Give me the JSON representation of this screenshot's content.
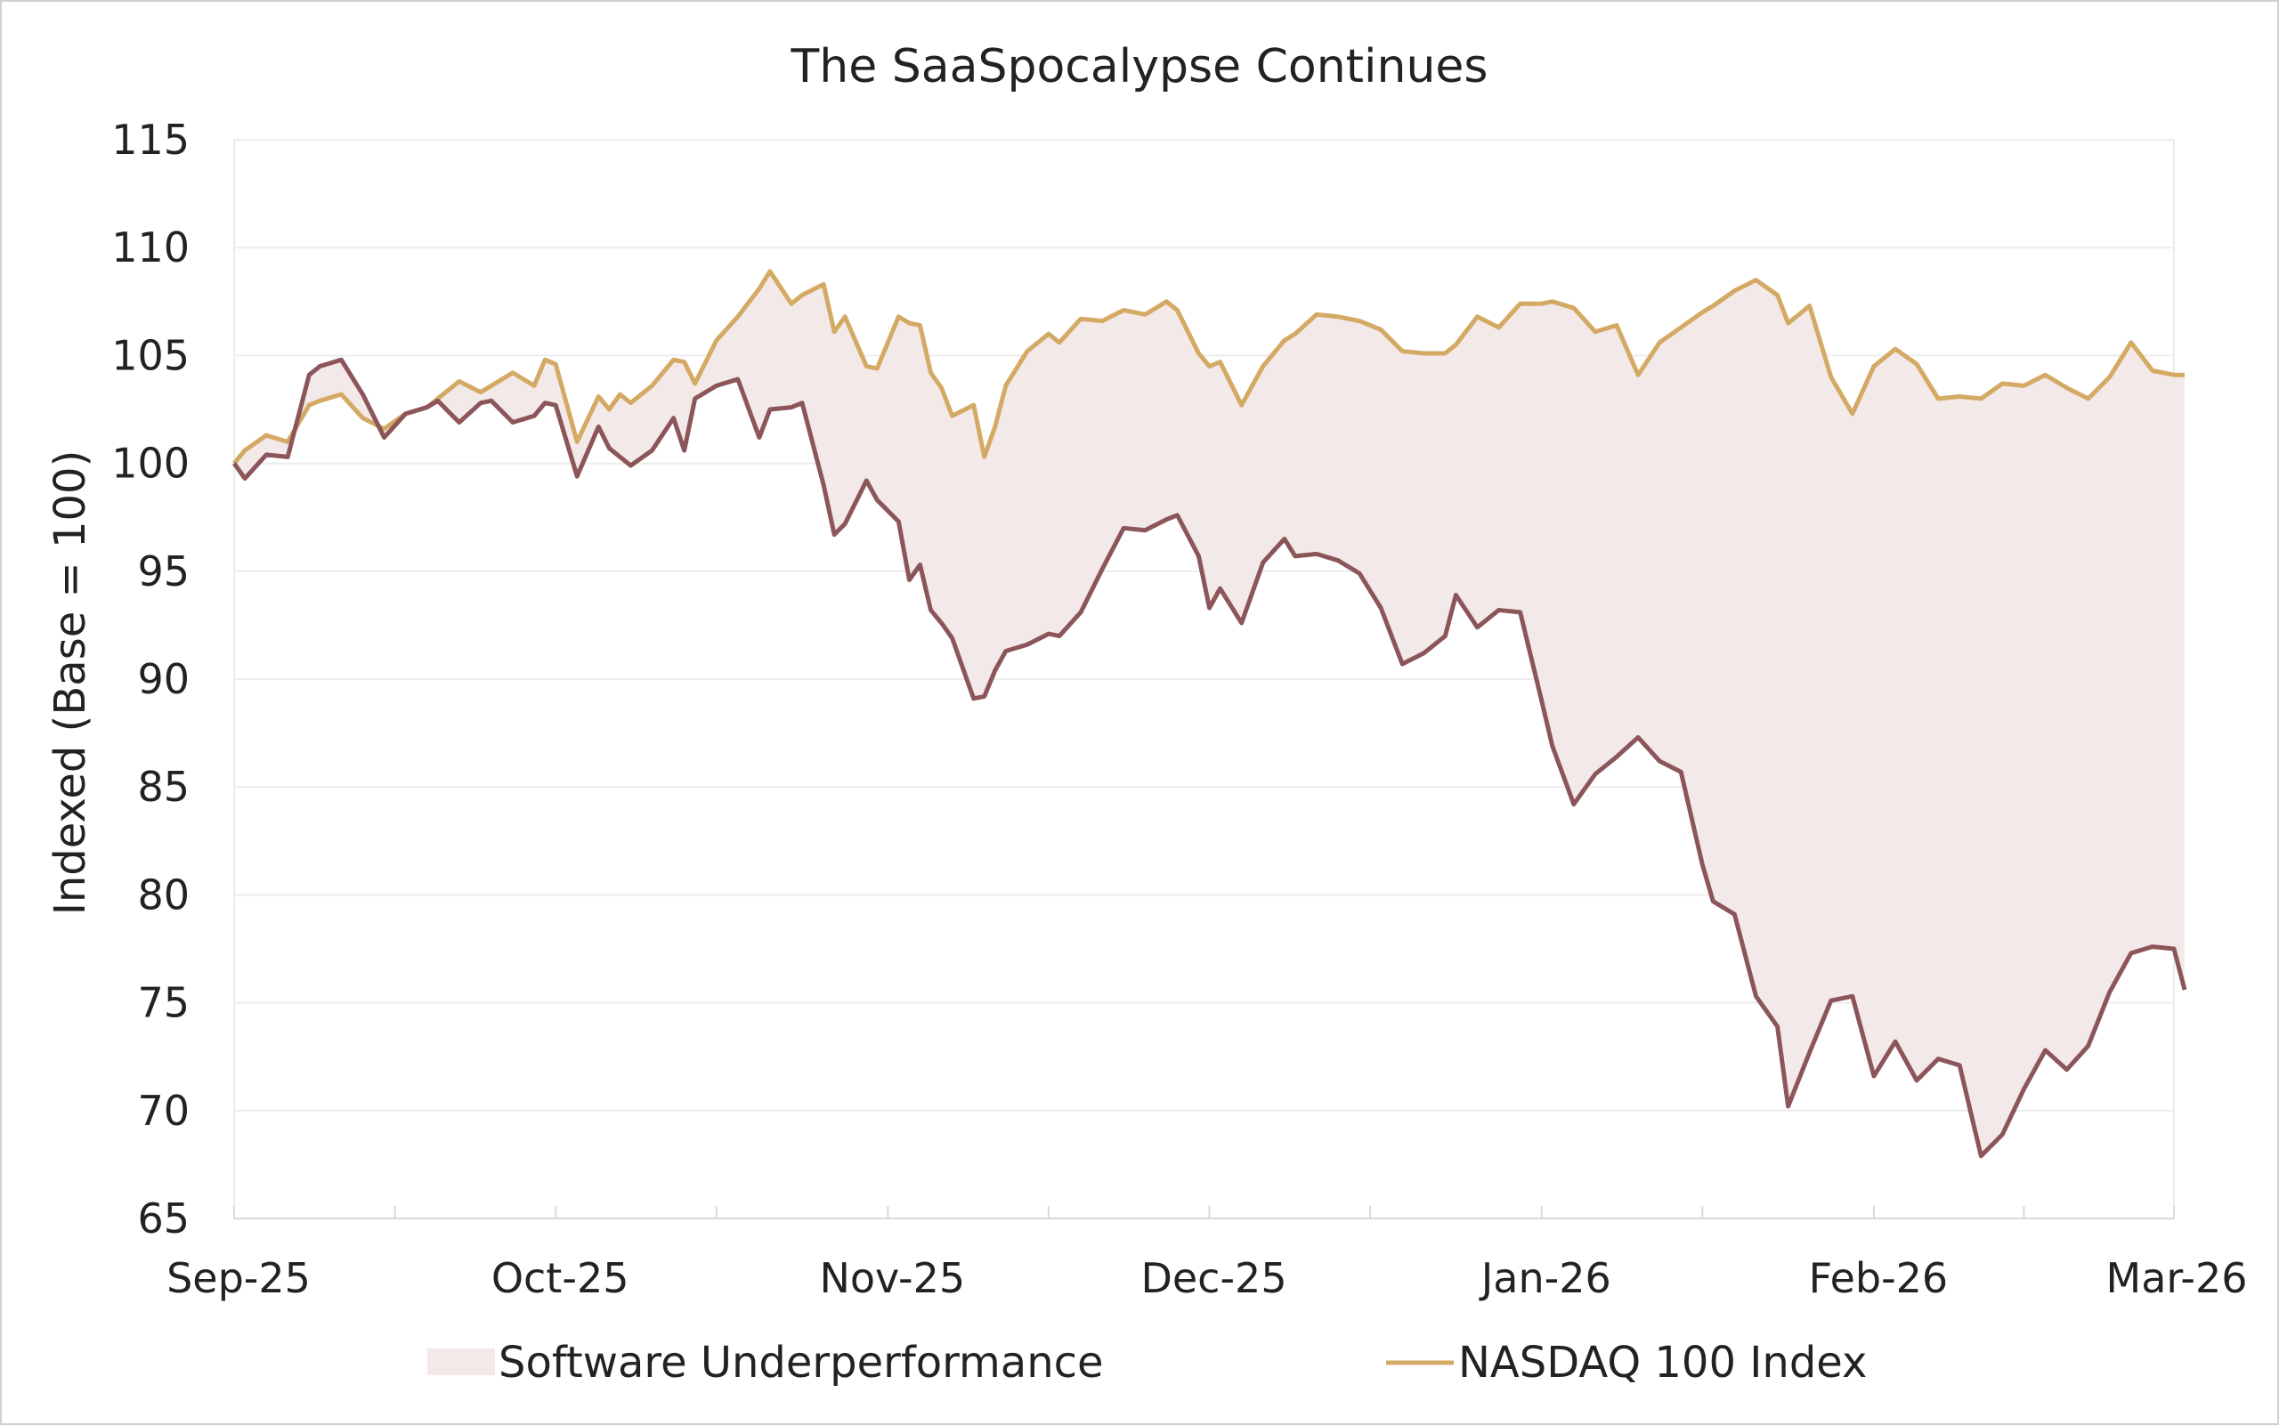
{
  "chart_data": {
    "type": "line",
    "title": "The SaaSpocalypse Continues",
    "xlabel": "",
    "ylabel": "Indexed (Base = 100)",
    "ylim": [
      65,
      115
    ],
    "yticks": [
      65,
      70,
      75,
      80,
      85,
      90,
      95,
      100,
      105,
      110,
      115
    ],
    "xticks": [
      "Sep-25",
      "Oct-25",
      "Nov-25",
      "Dec-25",
      "Jan-26",
      "Feb-26",
      "Mar-26"
    ],
    "grid": "horizontal",
    "legend_position": "bottom",
    "colors": {
      "software": "#8c5559",
      "nasdaq": "#d4a964",
      "fill": "#f3e9e8",
      "grid": "#ececec"
    },
    "fill_between": {
      "name": "Software Underperformance"
    },
    "x": [
      "2025-09-01",
      "2025-09-02",
      "2025-09-04",
      "2025-09-06",
      "2025-09-08",
      "2025-09-09",
      "2025-09-11",
      "2025-09-13",
      "2025-09-15",
      "2025-09-17",
      "2025-09-19",
      "2025-09-20",
      "2025-09-22",
      "2025-09-24",
      "2025-09-25",
      "2025-09-27",
      "2025-09-29",
      "2025-09-30",
      "2025-10-01",
      "2025-10-03",
      "2025-10-05",
      "2025-10-06",
      "2025-10-07",
      "2025-10-08",
      "2025-10-10",
      "2025-10-12",
      "2025-10-13",
      "2025-10-14",
      "2025-10-16",
      "2025-10-18",
      "2025-10-20",
      "2025-10-21",
      "2025-10-23",
      "2025-10-24",
      "2025-10-26",
      "2025-10-27",
      "2025-10-28",
      "2025-10-30",
      "2025-10-31",
      "2025-11-02",
      "2025-11-03",
      "2025-11-04",
      "2025-11-05",
      "2025-11-06",
      "2025-11-07",
      "2025-11-09",
      "2025-11-10",
      "2025-11-11",
      "2025-11-12",
      "2025-11-14",
      "2025-11-16",
      "2025-11-17",
      "2025-11-19",
      "2025-11-21",
      "2025-11-23",
      "2025-11-25",
      "2025-11-27",
      "2025-11-28",
      "2025-11-30",
      "2025-12-01",
      "2025-12-02",
      "2025-12-04",
      "2025-12-06",
      "2025-12-08",
      "2025-12-09",
      "2025-12-11",
      "2025-12-13",
      "2025-12-15",
      "2025-12-17",
      "2025-12-19",
      "2025-12-21",
      "2025-12-23",
      "2025-12-24",
      "2025-12-26",
      "2025-12-28",
      "2025-12-30",
      "2026-01-01",
      "2026-01-02",
      "2026-01-04",
      "2026-01-06",
      "2026-01-08",
      "2026-01-10",
      "2026-01-12",
      "2026-01-14",
      "2026-01-16",
      "2026-01-17",
      "2026-01-19",
      "2026-01-21",
      "2026-01-23",
      "2026-01-24",
      "2026-01-26",
      "2026-01-28",
      "2026-01-30",
      "2026-02-01",
      "2026-02-03",
      "2026-02-05",
      "2026-02-07",
      "2026-02-09",
      "2026-02-11",
      "2026-02-13",
      "2026-02-15",
      "2026-02-17",
      "2026-02-19",
      "2026-02-21",
      "2026-02-23",
      "2026-02-25",
      "2026-02-27",
      "2026-03-01",
      "2026-03-02"
    ],
    "series": [
      {
        "name": "NASDAQ 100 Index",
        "values": [
          100.0,
          100.6,
          101.3,
          101.0,
          102.7,
          102.9,
          103.2,
          102.1,
          101.6,
          102.3,
          102.6,
          103.0,
          103.8,
          103.3,
          103.6,
          104.2,
          103.6,
          104.8,
          104.6,
          101.0,
          103.1,
          102.5,
          103.2,
          102.8,
          103.6,
          104.8,
          104.7,
          103.7,
          105.7,
          106.8,
          108.1,
          108.9,
          107.4,
          107.8,
          108.3,
          106.1,
          106.8,
          104.5,
          104.4,
          106.8,
          106.5,
          106.4,
          104.2,
          103.5,
          102.2,
          102.7,
          100.3,
          101.7,
          103.6,
          105.2,
          106.0,
          105.6,
          106.7,
          106.6,
          107.1,
          106.9,
          107.5,
          107.1,
          105.1,
          104.5,
          104.7,
          102.7,
          104.5,
          105.7,
          106.0,
          106.9,
          106.8,
          106.6,
          106.2,
          105.2,
          105.1,
          105.1,
          105.5,
          106.8,
          106.3,
          107.4,
          107.4,
          107.5,
          107.2,
          106.1,
          106.4,
          104.1,
          105.6,
          106.3,
          107.0,
          107.3,
          108.0,
          108.5,
          107.8,
          106.5,
          107.3,
          104.0,
          102.3,
          104.5,
          105.3,
          104.6,
          103.0,
          103.1,
          103.0,
          103.7,
          103.6,
          104.1,
          103.5,
          103.0,
          104.0,
          105.6,
          104.3,
          104.1,
          104.1
        ]
      },
      {
        "name": "Software",
        "values": [
          100.0,
          99.3,
          100.4,
          100.3,
          104.1,
          104.5,
          104.8,
          103.2,
          101.2,
          102.3,
          102.6,
          102.9,
          101.9,
          102.8,
          102.9,
          101.9,
          102.2,
          102.8,
          102.7,
          99.4,
          101.7,
          100.7,
          100.3,
          99.9,
          100.6,
          102.1,
          100.6,
          103.0,
          103.6,
          103.9,
          101.2,
          102.5,
          102.6,
          102.8,
          99.0,
          96.7,
          97.2,
          99.2,
          98.3,
          97.3,
          94.6,
          95.3,
          93.2,
          92.6,
          91.9,
          89.1,
          89.2,
          90.4,
          91.3,
          91.6,
          92.1,
          92.0,
          93.1,
          95.1,
          97.0,
          96.9,
          97.4,
          97.6,
          95.7,
          93.3,
          94.2,
          92.6,
          95.4,
          96.5,
          95.7,
          95.8,
          95.5,
          94.9,
          93.3,
          90.7,
          91.2,
          92.0,
          93.9,
          92.4,
          93.2,
          93.1,
          89.0,
          86.9,
          84.2,
          85.6,
          86.4,
          87.3,
          86.2,
          85.7,
          81.4,
          79.7,
          79.1,
          75.3,
          73.9,
          70.2,
          72.7,
          75.1,
          75.3,
          71.6,
          73.2,
          71.4,
          72.4,
          72.1,
          67.9,
          68.9,
          71.0,
          72.8,
          71.9,
          73.0,
          75.5,
          77.3,
          77.6,
          77.5,
          75.6
        ]
      }
    ]
  },
  "legend": {
    "items": [
      "Software Underperformance",
      "NASDAQ 100 Index"
    ]
  }
}
